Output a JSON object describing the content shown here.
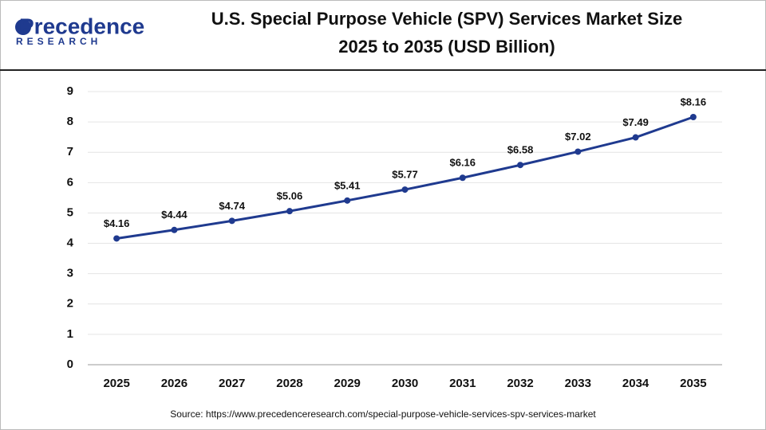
{
  "logo": {
    "name": "Precedence",
    "tagline": "RESEARCH"
  },
  "chart_data": {
    "type": "line",
    "title": [
      "U.S. Special Purpose Vehicle (SPV) Services Market  Size",
      "2025 to 2035 (USD Billion)"
    ],
    "categories": [
      "2025",
      "2026",
      "2027",
      "2028",
      "2029",
      "2030",
      "2031",
      "2032",
      "2033",
      "2034",
      "2035"
    ],
    "series": [
      {
        "color": "#1f3a8f",
        "values": [
          4.16,
          4.44,
          4.74,
          5.06,
          5.41,
          5.77,
          6.16,
          6.58,
          7.02,
          7.49,
          8.16
        ],
        "value_labels": [
          "$4.16",
          "$4.44",
          "$4.74",
          "$5.06",
          "$5.41",
          "$5.77",
          "$6.16",
          "$6.58",
          "$7.02",
          "$7.49",
          "$8.16"
        ]
      }
    ],
    "ylim": [
      0,
      9
    ],
    "yticks": [
      0,
      1,
      2,
      3,
      4,
      5,
      6,
      7,
      8,
      9
    ],
    "grid": true,
    "source": "Source: https://www.precedenceresearch.com/special-purpose-vehicle-services-spv-services-market"
  }
}
